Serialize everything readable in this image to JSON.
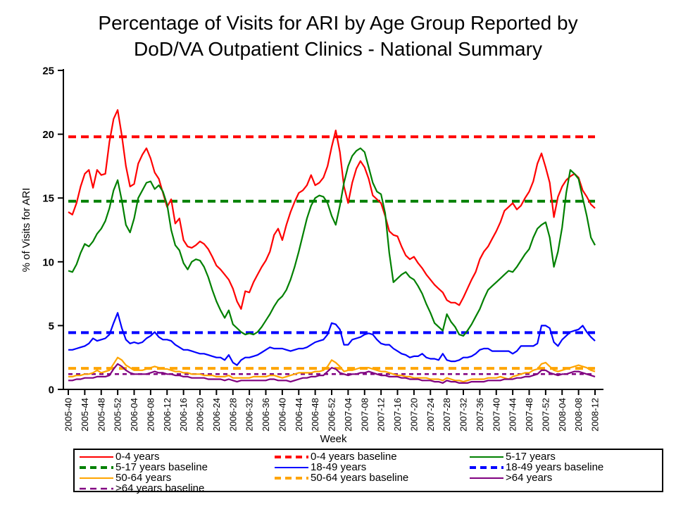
{
  "title": {
    "line1": "Percentage of Visits for ARI by Age Group Reported by",
    "line2": "DoD/VA Outpatient Clinics - National Summary"
  },
  "chart_data": {
    "type": "line",
    "title": "Percentage of Visits for ARI by Age Group Reported by DoD/VA Outpatient Clinics - National Summary",
    "xlabel": "Week",
    "ylabel": "% of Visits for ARI",
    "ylim": [
      0,
      25
    ],
    "y_ticks": [
      0,
      5,
      10,
      15,
      20,
      25
    ],
    "x_tick_labels": [
      "2005-40",
      "2005-44",
      "2005-48",
      "2005-52",
      "2006-04",
      "2006-08",
      "2006-12",
      "2006-16",
      "2006-20",
      "2006-24",
      "2006-28",
      "2006-32",
      "2006-36",
      "2006-40",
      "2006-44",
      "2006-48",
      "2006-52",
      "2007-04",
      "2007-08",
      "2007-12",
      "2007-16",
      "2007-20",
      "2007-24",
      "2007-28",
      "2007-32",
      "2007-36",
      "2007-40",
      "2007-44",
      "2007-48",
      "2007-52",
      "2008-04",
      "2008-08",
      "2008-12"
    ],
    "x_tick_every_n_weeks": 4,
    "x_range_weeks": 129,
    "grid": false,
    "legend_position": "bottom",
    "series": [
      {
        "name": "0-4 years",
        "type": "solid",
        "color": "#FF0000",
        "width": 2.2,
        "values": [
          13.9,
          13.7,
          14.6,
          15.9,
          16.9,
          17.2,
          15.8,
          17.2,
          16.8,
          16.9,
          19.4,
          21.2,
          21.9,
          19.9,
          17.5,
          15.9,
          16.1,
          17.7,
          18.4,
          18.9,
          18.1,
          17.0,
          16.5,
          15.4,
          14.3,
          14.9,
          13.0,
          13.4,
          11.7,
          11.2,
          11.1,
          11.3,
          11.6,
          11.4,
          11.0,
          10.4,
          9.7,
          9.4,
          9.0,
          8.6,
          7.9,
          6.9,
          6.3,
          7.7,
          7.6,
          8.4,
          9.0,
          9.6,
          10.1,
          10.8,
          12.1,
          12.6,
          11.7,
          12.9,
          13.9,
          14.7,
          15.4,
          15.6,
          16.0,
          16.8,
          16.0,
          16.2,
          16.6,
          17.5,
          19.0,
          20.3,
          18.6,
          15.9,
          14.6,
          16.2,
          17.3,
          17.9,
          17.4,
          16.5,
          15.2,
          14.9,
          14.6,
          13.6,
          12.4,
          12.1,
          12.0,
          11.2,
          10.5,
          10.2,
          10.4,
          9.9,
          9.5,
          9.0,
          8.6,
          8.2,
          7.9,
          7.6,
          7.0,
          6.8,
          6.8,
          6.6,
          7.2,
          7.9,
          8.6,
          9.2,
          10.2,
          10.8,
          11.2,
          11.8,
          12.4,
          13.1,
          14.0,
          14.3,
          14.6,
          14.1,
          14.4,
          15.0,
          15.5,
          16.3,
          17.7,
          18.5,
          17.4,
          16.2,
          13.5,
          15.1,
          15.9,
          16.4,
          16.7,
          16.9,
          16.6,
          15.6,
          15.1,
          14.5,
          14.2
        ]
      },
      {
        "name": "0-4 years baseline",
        "type": "dashed",
        "color": "#FF0000",
        "width": 4,
        "dash": "11 7",
        "baseline_value": 19.8
      },
      {
        "name": "5-17 years",
        "type": "solid",
        "color": "#008000",
        "width": 2.2,
        "values": [
          9.3,
          9.2,
          9.8,
          10.7,
          11.4,
          11.2,
          11.6,
          12.2,
          12.6,
          13.2,
          14.2,
          15.6,
          16.4,
          14.8,
          12.9,
          12.3,
          13.4,
          15.0,
          15.6,
          16.2,
          16.3,
          15.7,
          16.0,
          15.5,
          14.5,
          12.5,
          11.3,
          10.9,
          9.9,
          9.4,
          10.0,
          10.2,
          10.1,
          9.6,
          8.8,
          7.8,
          6.9,
          6.2,
          5.6,
          6.2,
          5.1,
          4.8,
          4.5,
          4.3,
          4.4,
          4.3,
          4.5,
          4.9,
          5.4,
          5.9,
          6.5,
          7.0,
          7.3,
          7.8,
          8.6,
          9.6,
          10.8,
          12.1,
          13.4,
          14.4,
          15.0,
          15.2,
          15.1,
          14.6,
          13.6,
          12.9,
          14.4,
          16.2,
          17.5,
          18.3,
          18.7,
          18.9,
          18.6,
          17.4,
          16.2,
          15.5,
          15.3,
          13.8,
          10.7,
          8.4,
          8.7,
          9.0,
          9.2,
          8.8,
          8.6,
          8.1,
          7.5,
          6.7,
          6.0,
          5.2,
          4.9,
          4.6,
          5.9,
          5.3,
          4.9,
          4.3,
          4.2,
          4.6,
          5.1,
          5.7,
          6.3,
          7.1,
          7.8,
          8.1,
          8.4,
          8.7,
          9.0,
          9.3,
          9.2,
          9.6,
          10.1,
          10.6,
          11.0,
          11.9,
          12.6,
          12.9,
          13.1,
          11.9,
          9.6,
          10.8,
          12.7,
          15.4,
          17.2,
          16.9,
          16.5,
          15.0,
          13.6,
          11.9,
          11.3
        ]
      },
      {
        "name": "5-17 years baseline",
        "type": "dashed",
        "color": "#008000",
        "width": 4,
        "dash": "11 7",
        "baseline_value": 14.75
      },
      {
        "name": "18-49 years",
        "type": "solid",
        "color": "#0000FF",
        "width": 2.2,
        "values": [
          3.1,
          3.1,
          3.2,
          3.3,
          3.4,
          3.6,
          4.0,
          3.8,
          3.9,
          4.0,
          4.3,
          5.2,
          6.0,
          4.8,
          3.9,
          3.6,
          3.7,
          3.6,
          3.7,
          4.0,
          4.2,
          4.5,
          4.1,
          3.9,
          3.9,
          3.8,
          3.5,
          3.3,
          3.1,
          3.1,
          3.0,
          2.9,
          2.8,
          2.8,
          2.7,
          2.6,
          2.5,
          2.5,
          2.3,
          2.7,
          2.1,
          1.9,
          2.3,
          2.5,
          2.5,
          2.6,
          2.7,
          2.9,
          3.1,
          3.3,
          3.2,
          3.2,
          3.2,
          3.1,
          3.0,
          3.1,
          3.2,
          3.2,
          3.3,
          3.5,
          3.7,
          3.8,
          3.9,
          4.3,
          5.2,
          5.1,
          4.7,
          3.5,
          3.5,
          3.9,
          4.0,
          4.1,
          4.3,
          4.4,
          4.3,
          3.9,
          3.6,
          3.5,
          3.5,
          3.2,
          3.0,
          2.8,
          2.7,
          2.5,
          2.6,
          2.6,
          2.8,
          2.5,
          2.4,
          2.4,
          2.3,
          2.8,
          2.3,
          2.2,
          2.2,
          2.3,
          2.5,
          2.5,
          2.6,
          2.8,
          3.1,
          3.2,
          3.2,
          3.0,
          3.0,
          3.0,
          3.0,
          3.0,
          2.8,
          3.0,
          3.4,
          3.4,
          3.4,
          3.4,
          3.6,
          5.0,
          5.0,
          4.8,
          3.7,
          3.4,
          3.9,
          4.2,
          4.5,
          4.6,
          4.7,
          5.0,
          4.5,
          4.1,
          3.8
        ]
      },
      {
        "name": "18-49 years baseline",
        "type": "dashed",
        "color": "#0000FF",
        "width": 4,
        "dash": "11 7",
        "baseline_value": 4.45
      },
      {
        "name": "50-64 years",
        "type": "solid",
        "color": "#FFA500",
        "width": 2.2,
        "values": [
          1.0,
          1.0,
          1.1,
          1.1,
          1.2,
          1.2,
          1.3,
          1.5,
          1.3,
          1.4,
          1.5,
          2.0,
          2.5,
          2.3,
          1.9,
          1.7,
          1.5,
          1.5,
          1.5,
          1.6,
          1.7,
          1.8,
          1.7,
          1.6,
          1.6,
          1.5,
          1.4,
          1.4,
          1.3,
          1.3,
          1.2,
          1.2,
          1.2,
          1.1,
          1.1,
          1.1,
          1.0,
          1.0,
          1.0,
          1.1,
          0.9,
          0.9,
          0.9,
          0.9,
          0.9,
          1.0,
          1.0,
          1.0,
          1.0,
          1.1,
          1.1,
          1.0,
          0.9,
          1.0,
          1.1,
          1.2,
          1.3,
          1.3,
          1.3,
          1.3,
          1.4,
          1.4,
          1.5,
          1.8,
          2.3,
          2.1,
          1.8,
          1.4,
          1.5,
          1.5,
          1.6,
          1.7,
          1.7,
          1.7,
          1.6,
          1.5,
          1.4,
          1.4,
          1.3,
          1.2,
          1.1,
          1.1,
          1.0,
          1.0,
          0.9,
          0.9,
          0.9,
          0.9,
          0.8,
          0.8,
          0.8,
          0.7,
          0.9,
          0.8,
          0.7,
          0.7,
          0.6,
          0.7,
          0.8,
          0.8,
          0.8,
          0.8,
          0.9,
          0.9,
          0.9,
          1.0,
          0.9,
          0.8,
          1.0,
          1.1,
          1.2,
          1.3,
          1.3,
          1.5,
          1.6,
          2.0,
          2.1,
          1.8,
          1.5,
          1.4,
          1.5,
          1.6,
          1.7,
          1.8,
          1.9,
          1.8,
          1.7,
          1.5,
          1.4
        ]
      },
      {
        "name": "50-64 years baseline",
        "type": "dashed",
        "color": "#FFA500",
        "width": 4,
        "dash": "11 7",
        "baseline_value": 1.65
      },
      {
        "name": ">64 years",
        "type": "solid",
        "color": "#800080",
        "width": 2.2,
        "values": [
          0.7,
          0.7,
          0.8,
          0.8,
          0.9,
          0.9,
          0.9,
          1.0,
          1.0,
          1.0,
          1.1,
          1.6,
          2.0,
          1.8,
          1.5,
          1.3,
          1.2,
          1.2,
          1.2,
          1.2,
          1.3,
          1.4,
          1.3,
          1.3,
          1.2,
          1.2,
          1.1,
          1.1,
          1.0,
          1.0,
          0.9,
          0.9,
          0.9,
          0.9,
          0.8,
          0.8,
          0.8,
          0.8,
          0.7,
          0.8,
          0.7,
          0.6,
          0.7,
          0.7,
          0.7,
          0.7,
          0.7,
          0.7,
          0.7,
          0.8,
          0.8,
          0.7,
          0.7,
          0.7,
          0.6,
          0.7,
          0.8,
          0.9,
          0.9,
          1.0,
          1.0,
          1.1,
          1.1,
          1.4,
          1.7,
          1.6,
          1.3,
          1.2,
          1.1,
          1.2,
          1.2,
          1.3,
          1.3,
          1.4,
          1.3,
          1.2,
          1.1,
          1.1,
          1.0,
          1.0,
          1.0,
          0.9,
          0.9,
          0.8,
          0.8,
          0.8,
          0.7,
          0.7,
          0.7,
          0.6,
          0.6,
          0.5,
          0.7,
          0.6,
          0.6,
          0.5,
          0.5,
          0.5,
          0.6,
          0.6,
          0.6,
          0.6,
          0.7,
          0.7,
          0.7,
          0.7,
          0.8,
          0.8,
          0.8,
          0.9,
          0.9,
          1.0,
          1.0,
          1.1,
          1.2,
          1.5,
          1.5,
          1.3,
          1.2,
          1.1,
          1.2,
          1.2,
          1.3,
          1.4,
          1.4,
          1.3,
          1.2,
          1.1,
          1.0
        ]
      },
      {
        "name": ">64 years baseline",
        "type": "dashed",
        "color": "#800080",
        "width": 2.5,
        "dash": "6 5",
        "baseline_value": 1.2
      }
    ]
  }
}
